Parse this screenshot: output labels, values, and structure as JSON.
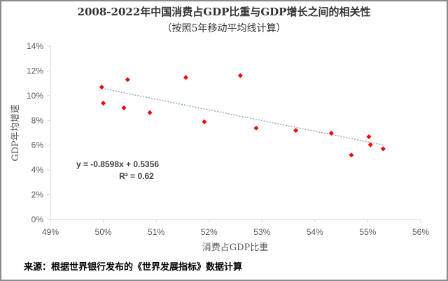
{
  "chart_data": {
    "type": "scatter",
    "title": "2008-2022年中国消费占GDP比重与GDP增长之间的相关性",
    "subtitle": "（按照5年移动平均线计算）",
    "xlabel": "消费占GDP比重",
    "ylabel": "GDP年均增速",
    "xlim": [
      0.49,
      0.56
    ],
    "ylim": [
      0,
      0.14
    ],
    "x_ticks": [
      "49%",
      "50%",
      "51%",
      "52%",
      "53%",
      "54%",
      "55%",
      "56%"
    ],
    "y_ticks": [
      "0%",
      "2%",
      "4%",
      "6%",
      "8%",
      "10%",
      "12%",
      "14%"
    ],
    "grid": false,
    "marker_color": "#ff0000",
    "trendline_color": "#8faabf",
    "points": [
      {
        "x": 0.4997,
        "y": 0.1069
      },
      {
        "x": 0.5,
        "y": 0.094
      },
      {
        "x": 0.5046,
        "y": 0.113
      },
      {
        "x": 0.5039,
        "y": 0.0902
      },
      {
        "x": 0.5088,
        "y": 0.0863
      },
      {
        "x": 0.5156,
        "y": 0.1147
      },
      {
        "x": 0.5191,
        "y": 0.0789
      },
      {
        "x": 0.5259,
        "y": 0.1162
      },
      {
        "x": 0.5289,
        "y": 0.0738
      },
      {
        "x": 0.5364,
        "y": 0.0719
      },
      {
        "x": 0.5431,
        "y": 0.0697
      },
      {
        "x": 0.5469,
        "y": 0.052
      },
      {
        "x": 0.5502,
        "y": 0.0668
      },
      {
        "x": 0.5505,
        "y": 0.0603
      },
      {
        "x": 0.5529,
        "y": 0.0571
      }
    ],
    "trendline": {
      "slope": -0.8598,
      "intercept": 0.5356,
      "equation": "y = -0.8598x + 0.5356",
      "r2_label": "R² = 0.62"
    }
  },
  "footer": {
    "source": "来源：根据世界银行发布的《世界发展指标》数据计算"
  }
}
